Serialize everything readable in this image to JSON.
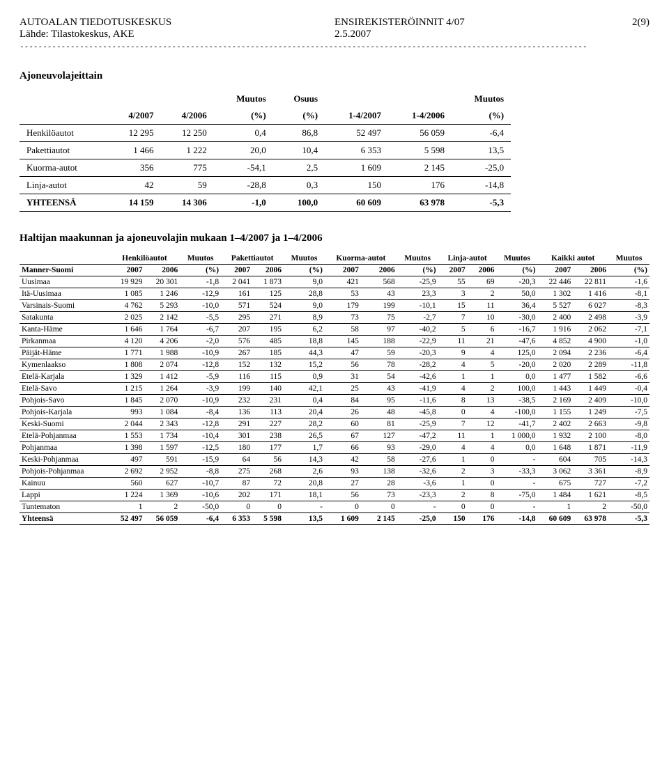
{
  "header": {
    "org": "AUTOALAN TIEDOTUSKESKUS",
    "title": "ENSIREKISTERÖINNIT 4/07",
    "page": "2(9)",
    "source": "Lähde: Tilastokeskus, AKE",
    "date": "2.5.2007",
    "divider": "---------------------------------------------------------------------------------------------------------------------------"
  },
  "section1": {
    "title": "Ajoneuvolajeittain",
    "col_headers": {
      "c1": "4/2007",
      "c2": "4/2006",
      "c3a": "Muutos",
      "c3b": "(%)",
      "c4a": "Osuus",
      "c4b": "(%)",
      "c5": "1-4/2007",
      "c6": "1-4/2006",
      "c7a": "Muutos",
      "c7b": "(%)"
    },
    "rows": [
      {
        "label": "Henkilöautot",
        "a": "12 295",
        "b": "12 250",
        "c": "0,4",
        "d": "86,8",
        "e": "52 497",
        "f": "56 059",
        "g": "-6,4"
      },
      {
        "label": "Pakettiautot",
        "a": "1 466",
        "b": "1 222",
        "c": "20,0",
        "d": "10,4",
        "e": "6 353",
        "f": "5 598",
        "g": "13,5"
      },
      {
        "label": "Kuorma-autot",
        "a": "356",
        "b": "775",
        "c": "-54,1",
        "d": "2,5",
        "e": "1 609",
        "f": "2 145",
        "g": "-25,0"
      },
      {
        "label": "Linja-autot",
        "a": "42",
        "b": "59",
        "c": "-28,8",
        "d": "0,3",
        "e": "150",
        "f": "176",
        "g": "-14,8"
      },
      {
        "label": "YHTEENSÄ",
        "a": "14 159",
        "b": "14 306",
        "c": "-1,0",
        "d": "100,0",
        "e": "60 609",
        "f": "63 978",
        "g": "-5,3",
        "bold": true
      }
    ]
  },
  "section2": {
    "title": "Haltijan maakunnan ja ajoneuvolajin mukaan 1–4/2007 ja 1–4/2006",
    "group_headers": [
      "Henkilöautot",
      "Muutos",
      "Pakettiautot",
      "Muutos",
      "Kuorma-autot",
      "Muutos",
      "Linja-autot",
      "Muutos",
      "Kaikki autot",
      "Muutos"
    ],
    "sub_headers_left": "Manner-Suomi",
    "sub_headers": [
      "2007",
      "2006",
      "(%)",
      "2007",
      "2006",
      "(%)",
      "2007",
      "2006",
      "(%)",
      "2007",
      "2006",
      "(%)",
      "2007",
      "2006",
      "(%)"
    ],
    "rows": [
      {
        "l": "Uusimaa",
        "v": [
          "19 929",
          "20 301",
          "-1,8",
          "2 041",
          "1 873",
          "9,0",
          "421",
          "568",
          "-25,9",
          "55",
          "69",
          "-20,3",
          "22 446",
          "22 811",
          "-1,6"
        ]
      },
      {
        "l": "Itä-Uusimaa",
        "v": [
          "1 085",
          "1 246",
          "-12,9",
          "161",
          "125",
          "28,8",
          "53",
          "43",
          "23,3",
          "3",
          "2",
          "50,0",
          "1 302",
          "1 416",
          "-8,1"
        ]
      },
      {
        "l": "Varsinais-Suomi",
        "v": [
          "4 762",
          "5 293",
          "-10,0",
          "571",
          "524",
          "9,0",
          "179",
          "199",
          "-10,1",
          "15",
          "11",
          "36,4",
          "5 527",
          "6 027",
          "-8,3"
        ]
      },
      {
        "l": "Satakunta",
        "v": [
          "2 025",
          "2 142",
          "-5,5",
          "295",
          "271",
          "8,9",
          "73",
          "75",
          "-2,7",
          "7",
          "10",
          "-30,0",
          "2 400",
          "2 498",
          "-3,9"
        ]
      },
      {
        "l": "Kanta-Häme",
        "v": [
          "1 646",
          "1 764",
          "-6,7",
          "207",
          "195",
          "6,2",
          "58",
          "97",
          "-40,2",
          "5",
          "6",
          "-16,7",
          "1 916",
          "2 062",
          "-7,1"
        ]
      },
      {
        "l": "Pirkanmaa",
        "v": [
          "4 120",
          "4 206",
          "-2,0",
          "576",
          "485",
          "18,8",
          "145",
          "188",
          "-22,9",
          "11",
          "21",
          "-47,6",
          "4 852",
          "4 900",
          "-1,0"
        ]
      },
      {
        "l": "Päijät-Häme",
        "v": [
          "1 771",
          "1 988",
          "-10,9",
          "267",
          "185",
          "44,3",
          "47",
          "59",
          "-20,3",
          "9",
          "4",
          "125,0",
          "2 094",
          "2 236",
          "-6,4"
        ]
      },
      {
        "l": "Kymenlaakso",
        "v": [
          "1 808",
          "2 074",
          "-12,8",
          "152",
          "132",
          "15,2",
          "56",
          "78",
          "-28,2",
          "4",
          "5",
          "-20,0",
          "2 020",
          "2 289",
          "-11,8"
        ]
      },
      {
        "l": "Etelä-Karjala",
        "v": [
          "1 329",
          "1 412",
          "-5,9",
          "116",
          "115",
          "0,9",
          "31",
          "54",
          "-42,6",
          "1",
          "1",
          "0,0",
          "1 477",
          "1 582",
          "-6,6"
        ]
      },
      {
        "l": "Etelä-Savo",
        "v": [
          "1 215",
          "1 264",
          "-3,9",
          "199",
          "140",
          "42,1",
          "25",
          "43",
          "-41,9",
          "4",
          "2",
          "100,0",
          "1 443",
          "1 449",
          "-0,4"
        ]
      },
      {
        "l": "Pohjois-Savo",
        "v": [
          "1 845",
          "2 070",
          "-10,9",
          "232",
          "231",
          "0,4",
          "84",
          "95",
          "-11,6",
          "8",
          "13",
          "-38,5",
          "2 169",
          "2 409",
          "-10,0"
        ]
      },
      {
        "l": "Pohjois-Karjala",
        "v": [
          "993",
          "1 084",
          "-8,4",
          "136",
          "113",
          "20,4",
          "26",
          "48",
          "-45,8",
          "0",
          "4",
          "-100,0",
          "1 155",
          "1 249",
          "-7,5"
        ]
      },
      {
        "l": "Keski-Suomi",
        "v": [
          "2 044",
          "2 343",
          "-12,8",
          "291",
          "227",
          "28,2",
          "60",
          "81",
          "-25,9",
          "7",
          "12",
          "-41,7",
          "2 402",
          "2 663",
          "-9,8"
        ]
      },
      {
        "l": "Etelä-Pohjanmaa",
        "v": [
          "1 553",
          "1 734",
          "-10,4",
          "301",
          "238",
          "26,5",
          "67",
          "127",
          "-47,2",
          "11",
          "1",
          "1 000,0",
          "1 932",
          "2 100",
          "-8,0"
        ]
      },
      {
        "l": "Pohjanmaa",
        "v": [
          "1 398",
          "1 597",
          "-12,5",
          "180",
          "177",
          "1,7",
          "66",
          "93",
          "-29,0",
          "4",
          "4",
          "0,0",
          "1 648",
          "1 871",
          "-11,9"
        ]
      },
      {
        "l": "Keski-Pohjanmaa",
        "v": [
          "497",
          "591",
          "-15,9",
          "64",
          "56",
          "14,3",
          "42",
          "58",
          "-27,6",
          "1",
          "0",
          "-",
          "604",
          "705",
          "-14,3"
        ]
      },
      {
        "l": "Pohjois-Pohjanmaa",
        "v": [
          "2 692",
          "2 952",
          "-8,8",
          "275",
          "268",
          "2,6",
          "93",
          "138",
          "-32,6",
          "2",
          "3",
          "-33,3",
          "3 062",
          "3 361",
          "-8,9"
        ]
      },
      {
        "l": "Kainuu",
        "v": [
          "560",
          "627",
          "-10,7",
          "87",
          "72",
          "20,8",
          "27",
          "28",
          "-3,6",
          "1",
          "0",
          "-",
          "675",
          "727",
          "-7,2"
        ]
      },
      {
        "l": "Lappi",
        "v": [
          "1 224",
          "1 369",
          "-10,6",
          "202",
          "171",
          "18,1",
          "56",
          "73",
          "-23,3",
          "2",
          "8",
          "-75,0",
          "1 484",
          "1 621",
          "-8,5"
        ]
      },
      {
        "l": "Tuntematon",
        "v": [
          "1",
          "2",
          "-50,0",
          "0",
          "0",
          "-",
          "0",
          "0",
          "-",
          "0",
          "0",
          "-",
          "1",
          "2",
          "-50,0"
        ]
      },
      {
        "l": "Yhteensä",
        "v": [
          "52 497",
          "56 059",
          "-6,4",
          "6 353",
          "5 598",
          "13,5",
          "1 609",
          "2 145",
          "-25,0",
          "150",
          "176",
          "-14,8",
          "60 609",
          "63 978",
          "-5,3"
        ],
        "bold": true
      }
    ]
  }
}
